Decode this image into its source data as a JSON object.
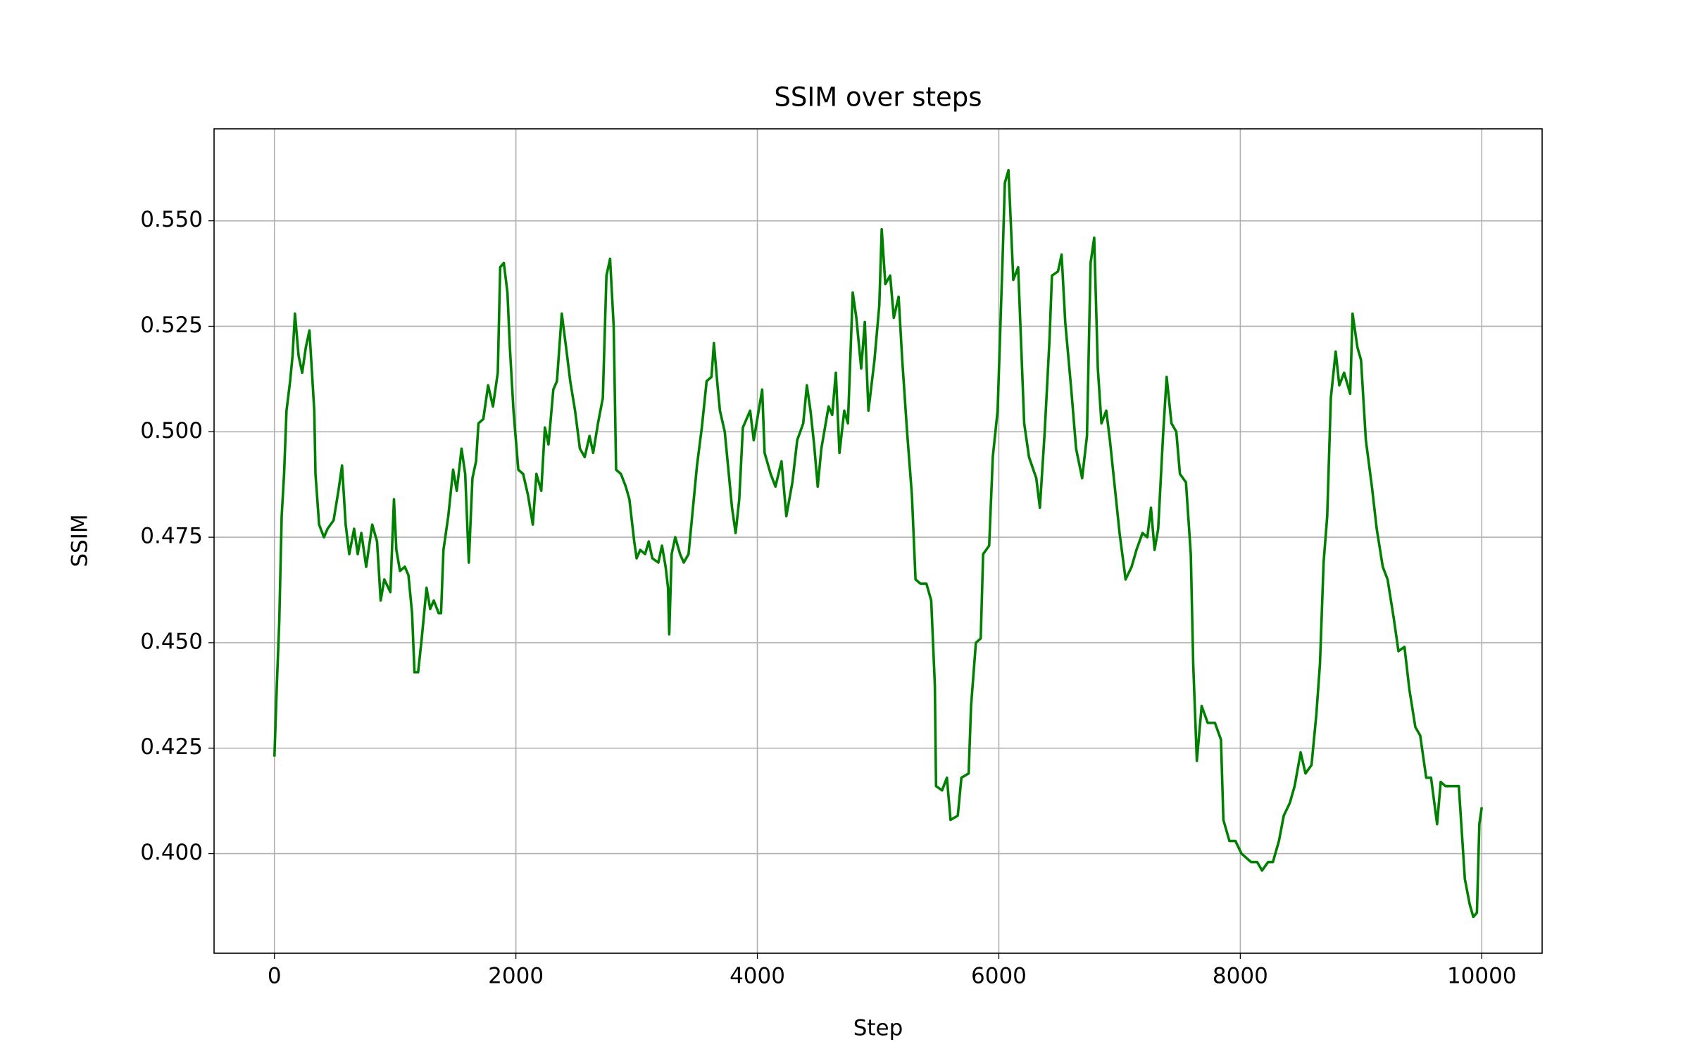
{
  "chart_data": {
    "type": "line",
    "title": "SSIM over steps",
    "xlabel": "Step",
    "ylabel": "SSIM",
    "x": [
      0,
      20,
      40,
      60,
      80,
      100,
      130,
      150,
      170,
      200,
      230,
      260,
      290,
      330,
      340,
      370,
      410,
      440,
      490,
      530,
      560,
      590,
      620,
      660,
      690,
      720,
      760,
      810,
      850,
      880,
      910,
      960,
      990,
      1010,
      1040,
      1080,
      1110,
      1140,
      1160,
      1190,
      1220,
      1260,
      1290,
      1320,
      1360,
      1380,
      1400,
      1440,
      1480,
      1510,
      1550,
      1580,
      1610,
      1640,
      1670,
      1690,
      1730,
      1770,
      1810,
      1850,
      1870,
      1900,
      1930,
      1950,
      1980,
      2020,
      2060,
      2100,
      2140,
      2170,
      2210,
      2240,
      2270,
      2310,
      2340,
      2380,
      2420,
      2450,
      2490,
      2530,
      2570,
      2610,
      2640,
      2680,
      2720,
      2750,
      2780,
      2810,
      2830,
      2870,
      2910,
      2940,
      2980,
      3000,
      3030,
      3070,
      3100,
      3130,
      3180,
      3210,
      3240,
      3260,
      3270,
      3290,
      3320,
      3360,
      3390,
      3430,
      3470,
      3500,
      3540,
      3580,
      3620,
      3640,
      3670,
      3690,
      3730,
      3760,
      3790,
      3820,
      3850,
      3880,
      3940,
      3970,
      4040,
      4060,
      4110,
      4150,
      4200,
      4240,
      4290,
      4330,
      4380,
      4410,
      4440,
      4470,
      4500,
      4530,
      4590,
      4620,
      4650,
      4680,
      4720,
      4750,
      4790,
      4820,
      4860,
      4890,
      4920,
      4970,
      5010,
      5030,
      5060,
      5100,
      5130,
      5170,
      5200,
      5240,
      5280,
      5310,
      5350,
      5400,
      5440,
      5470,
      5480,
      5530,
      5570,
      5600,
      5660,
      5690,
      5750,
      5770,
      5810,
      5850,
      5870,
      5920,
      5950,
      5990,
      6030,
      6050,
      6080,
      6120,
      6160,
      6210,
      6250,
      6310,
      6340,
      6380,
      6420,
      6440,
      6490,
      6520,
      6550,
      6600,
      6640,
      6690,
      6730,
      6760,
      6790,
      6820,
      6850,
      6890,
      6920,
      6960,
      7000,
      7050,
      7100,
      7140,
      7190,
      7230,
      7260,
      7290,
      7320,
      7360,
      7390,
      7430,
      7470,
      7500,
      7550,
      7590,
      7610,
      7640,
      7680,
      7730,
      7790,
      7840,
      7860,
      7910,
      7960,
      8010,
      8050,
      8090,
      8140,
      8180,
      8230,
      8270,
      8320,
      8360,
      8410,
      8450,
      8500,
      8540,
      8590,
      8630,
      8660,
      8690,
      8720,
      8750,
      8790,
      8820,
      8860,
      8910,
      8930,
      8970,
      9000,
      9040,
      9090,
      9130,
      9180,
      9220,
      9270,
      9310,
      9360,
      9400,
      9450,
      9490,
      9540,
      9580,
      9630,
      9660,
      9700,
      9770,
      9810,
      9860,
      9900,
      9930,
      9960,
      9980,
      10000
    ],
    "series": [
      {
        "color": "#008000",
        "values": [
          0.423,
          0.44,
          0.455,
          0.48,
          0.49,
          0.505,
          0.512,
          0.518,
          0.528,
          0.518,
          0.514,
          0.52,
          0.524,
          0.505,
          0.49,
          0.478,
          0.475,
          0.477,
          0.479,
          0.486,
          0.492,
          0.478,
          0.471,
          0.477,
          0.471,
          0.476,
          0.468,
          0.478,
          0.474,
          0.46,
          0.465,
          0.462,
          0.484,
          0.472,
          0.467,
          0.468,
          0.466,
          0.457,
          0.443,
          0.443,
          0.451,
          0.463,
          0.458,
          0.46,
          0.457,
          0.457,
          0.472,
          0.48,
          0.491,
          0.486,
          0.496,
          0.49,
          0.469,
          0.489,
          0.493,
          0.502,
          0.503,
          0.511,
          0.506,
          0.514,
          0.539,
          0.54,
          0.533,
          0.52,
          0.505,
          0.491,
          0.49,
          0.485,
          0.478,
          0.49,
          0.486,
          0.501,
          0.497,
          0.51,
          0.512,
          0.528,
          0.519,
          0.512,
          0.505,
          0.496,
          0.494,
          0.499,
          0.495,
          0.502,
          0.508,
          0.537,
          0.541,
          0.525,
          0.491,
          0.49,
          0.487,
          0.484,
          0.474,
          0.47,
          0.472,
          0.471,
          0.474,
          0.47,
          0.469,
          0.473,
          0.468,
          0.463,
          0.452,
          0.471,
          0.475,
          0.471,
          0.469,
          0.471,
          0.483,
          0.492,
          0.501,
          0.512,
          0.513,
          0.521,
          0.511,
          0.505,
          0.5,
          0.491,
          0.482,
          0.476,
          0.484,
          0.501,
          0.505,
          0.498,
          0.51,
          0.495,
          0.49,
          0.487,
          0.493,
          0.48,
          0.488,
          0.498,
          0.502,
          0.511,
          0.505,
          0.497,
          0.487,
          0.496,
          0.506,
          0.504,
          0.514,
          0.495,
          0.505,
          0.502,
          0.533,
          0.527,
          0.515,
          0.526,
          0.505,
          0.517,
          0.53,
          0.548,
          0.535,
          0.537,
          0.527,
          0.532,
          0.517,
          0.5,
          0.485,
          0.465,
          0.464,
          0.464,
          0.46,
          0.44,
          0.416,
          0.415,
          0.418,
          0.408,
          0.409,
          0.418,
          0.419,
          0.435,
          0.45,
          0.451,
          0.471,
          0.473,
          0.494,
          0.505,
          0.54,
          0.559,
          0.562,
          0.536,
          0.539,
          0.502,
          0.494,
          0.489,
          0.482,
          0.5,
          0.522,
          0.537,
          0.538,
          0.542,
          0.526,
          0.51,
          0.496,
          0.489,
          0.499,
          0.54,
          0.546,
          0.515,
          0.502,
          0.505,
          0.498,
          0.487,
          0.476,
          0.465,
          0.468,
          0.472,
          0.476,
          0.475,
          0.482,
          0.472,
          0.477,
          0.499,
          0.513,
          0.502,
          0.5,
          0.49,
          0.488,
          0.471,
          0.445,
          0.422,
          0.435,
          0.431,
          0.431,
          0.427,
          0.408,
          0.403,
          0.403,
          0.4,
          0.399,
          0.398,
          0.398,
          0.396,
          0.398,
          0.398,
          0.403,
          0.409,
          0.412,
          0.416,
          0.424,
          0.419,
          0.421,
          0.433,
          0.445,
          0.469,
          0.48,
          0.508,
          0.519,
          0.511,
          0.514,
          0.509,
          0.528,
          0.52,
          0.517,
          0.498,
          0.487,
          0.477,
          0.468,
          0.465,
          0.456,
          0.448,
          0.449,
          0.439,
          0.43,
          0.428,
          0.418,
          0.418,
          0.407,
          0.417,
          0.416,
          0.416,
          0.416,
          0.394,
          0.388,
          0.385,
          0.386,
          0.407,
          0.411
        ]
      }
    ],
    "xlim": [
      -500,
      10500
    ],
    "ylim": [
      0.3764,
      0.5718
    ],
    "xticks": [
      0,
      2000,
      4000,
      6000,
      8000,
      10000
    ],
    "yticks": [
      {
        "value": 0.4,
        "label": "0.400"
      },
      0.425,
      {
        "value": 0.45,
        "label": "0.450"
      },
      0.475,
      {
        "value": 0.5,
        "label": "0.500"
      },
      0.525,
      {
        "value": 0.55,
        "label": "0.550"
      }
    ],
    "grid": true
  }
}
